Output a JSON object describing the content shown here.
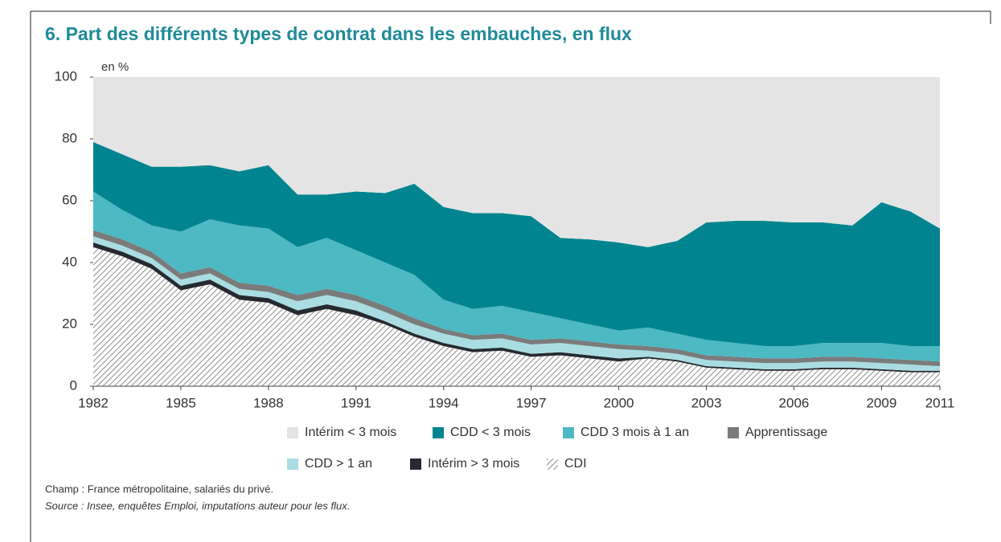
{
  "chart_data": {
    "type": "stacked_area",
    "title": "6. Part des différents types de contrat dans les embauches, en flux",
    "y_label": "en %",
    "x": [
      1982,
      1983,
      1984,
      1985,
      1986,
      1987,
      1988,
      1989,
      1990,
      1991,
      1992,
      1993,
      1994,
      1995,
      1996,
      1997,
      1998,
      1999,
      2000,
      2001,
      2002,
      2003,
      2004,
      2005,
      2006,
      2007,
      2008,
      2009,
      2010,
      2011
    ],
    "xlim": [
      1982,
      2011
    ],
    "xticks": [
      1982,
      1985,
      1988,
      1991,
      1994,
      1997,
      2000,
      2003,
      2006,
      2009,
      2011
    ],
    "ylim": [
      0,
      100
    ],
    "yticks": [
      0,
      20,
      40,
      60,
      80,
      100
    ],
    "series": [
      {
        "name": "Intérim < 3 mois",
        "color": "#e4e4e4",
        "values": [
          21,
          25,
          29,
          29,
          28.5,
          30.5,
          28.5,
          38,
          38,
          37,
          37.5,
          34.5,
          42,
          44,
          44,
          45,
          52,
          52.5,
          53.5,
          55,
          53,
          47,
          46.5,
          46.5,
          47,
          47,
          48,
          40.5,
          43.5,
          49
        ]
      },
      {
        "name": "CDD < 3 mois",
        "color": "#008590",
        "values": [
          16,
          18,
          19,
          21,
          17.5,
          17.5,
          20.5,
          17,
          14,
          19,
          22.5,
          29.5,
          30,
          31,
          30,
          31,
          26,
          27.5,
          28.5,
          26,
          30,
          38,
          39.5,
          40.5,
          40,
          39,
          38,
          45.5,
          43.5,
          38
        ]
      },
      {
        "name": "CDD 3 mois à 1 an",
        "color": "#4cb9c3",
        "values": [
          12.5,
          9.5,
          8.5,
          13.5,
          15.5,
          18.5,
          18.5,
          15.5,
          16.5,
          14.5,
          14,
          14,
          9.5,
          8.5,
          9,
          9,
          6.5,
          5.5,
          4.5,
          6,
          5,
          5,
          4.5,
          4,
          4,
          4.5,
          4.5,
          5,
          4.5,
          5
        ]
      },
      {
        "name": "Apprentissage",
        "color": "#7b7b7b",
        "values": [
          2,
          2,
          2,
          2,
          2,
          2,
          2,
          2,
          2,
          2,
          2,
          2,
          1.5,
          1.5,
          1.5,
          1.5,
          1.5,
          1.5,
          1.5,
          1.5,
          1.5,
          1.5,
          1.5,
          1.5,
          1.5,
          1.5,
          1.5,
          1.5,
          1.5,
          1.5
        ]
      },
      {
        "name": "CDD > 1 an",
        "color": "#a9dde3",
        "values": [
          2,
          2,
          2,
          2,
          2,
          2,
          2,
          3,
          3,
          3,
          3,
          3,
          3,
          3,
          3,
          3,
          3,
          3,
          3,
          2,
          2,
          2,
          2,
          2,
          2,
          2,
          2,
          2,
          2,
          1.5
        ]
      },
      {
        "name": "Intérim > 3 mois",
        "color": "#262a30",
        "values": [
          1.5,
          1.5,
          1.5,
          1.5,
          1.5,
          1.5,
          1.5,
          1.5,
          1.5,
          1.5,
          1,
          1,
          1,
          1,
          1,
          1,
          1,
          1,
          1,
          0.5,
          0.5,
          0.5,
          0.5,
          0.5,
          0.5,
          0.5,
          0.5,
          0.5,
          0.5,
          0.5
        ]
      },
      {
        "name": "CDI",
        "color": "#8c8c8c",
        "pattern": "hatch",
        "values": [
          45,
          42,
          38,
          31,
          33,
          28,
          27,
          23,
          25,
          23,
          20,
          16,
          13,
          11,
          11.5,
          9.5,
          10,
          9,
          8,
          9,
          8,
          6,
          5.5,
          5,
          5,
          5.5,
          5.5,
          5,
          4.5,
          4.5
        ]
      }
    ],
    "notes": [
      "Champ : France métropolitaine, salariés du privé.",
      "Source : Insee, enquêtes Emploi, imputations auteur pour les flux."
    ]
  }
}
